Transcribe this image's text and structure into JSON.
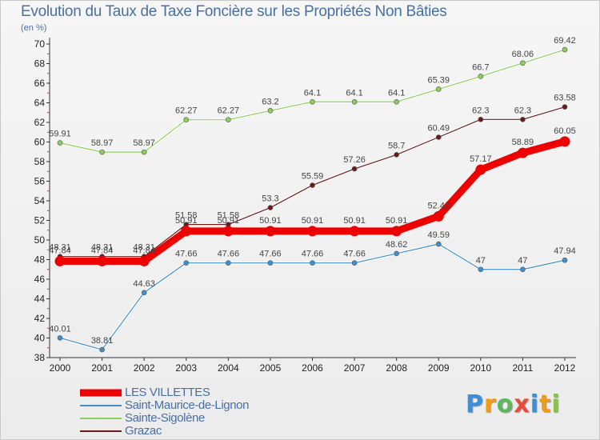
{
  "title": "Evolution du Taux de Taxe Foncière sur les Propriétés Non Bâties",
  "subtitle": "(en %)",
  "logo": {
    "text": "Proxiti",
    "letter_colors": [
      "#3a8fd6",
      "#f39c12",
      "#5cb85c",
      "#e74c3c",
      "#3a8fd6",
      "#f39c12",
      "#8bc34a"
    ]
  },
  "chart_data": {
    "type": "line",
    "title": "Evolution du Taux de Taxe Foncière sur les Propriétés Non Bâties",
    "ylabel": "(en %)",
    "x": [
      "2000",
      "2001",
      "2002",
      "2003",
      "2004",
      "2005",
      "2006",
      "2007",
      "2008",
      "2009",
      "2010",
      "2011",
      "2012"
    ],
    "ylim": [
      38,
      70
    ],
    "yticks": [
      38,
      40,
      42,
      44,
      46,
      48,
      50,
      52,
      54,
      56,
      58,
      60,
      62,
      64,
      66,
      68,
      70
    ],
    "series": [
      {
        "name": "Saint-Maurice-de-Lignon",
        "color": "#3f8fce",
        "values": [
          40.01,
          38.81,
          44.63,
          47.66,
          47.66,
          47.66,
          47.66,
          47.66,
          48.62,
          49.59,
          47,
          47,
          47.94
        ],
        "labels": [
          "40.01",
          "38.81",
          "44.63",
          "47.66",
          "47.66",
          "47.66",
          "47.66",
          "47.66",
          "48.62",
          "49.59",
          "47",
          "47",
          "47.94"
        ]
      },
      {
        "name": "Sainte-Sigolène",
        "color": "#8ccf5a",
        "values": [
          59.91,
          58.97,
          58.97,
          62.27,
          62.27,
          63.2,
          64.1,
          64.1,
          64.1,
          65.39,
          66.7,
          68.06,
          69.42
        ],
        "labels": [
          "59.91",
          "58.97",
          "58.97",
          "62.27",
          "62.27",
          "63.2",
          "64.1",
          "64.1",
          "64.1",
          "65.39",
          "66.7",
          "68.06",
          "69.42"
        ]
      },
      {
        "name": "Grazac",
        "color": "#6b1a1a",
        "values": [
          48.31,
          48.31,
          48.31,
          51.58,
          51.58,
          53.3,
          55.59,
          57.26,
          58.7,
          60.49,
          62.3,
          62.3,
          63.58
        ],
        "labels": [
          "48.31",
          "48.31",
          "48.31",
          "51.58",
          "51.58",
          "53.3",
          "55.59",
          "57.26",
          "58.7",
          "60.49",
          "62.3",
          "62.3",
          "63.58"
        ]
      },
      {
        "name": "LES VILLETTES",
        "color": "#ee0000",
        "bold": true,
        "values": [
          47.84,
          47.84,
          47.84,
          50.91,
          50.91,
          50.91,
          50.91,
          50.91,
          50.91,
          52.42,
          57.17,
          58.89,
          60.05
        ],
        "labels": [
          "47.84",
          "47.84",
          "47.84",
          "50.91",
          "50.91",
          "50.91",
          "50.91",
          "50.91",
          "50.91",
          "52.42",
          "57.17",
          "58.89",
          "60.05"
        ]
      }
    ],
    "legend_order": [
      "LES VILLETTES",
      "Saint-Maurice-de-Lignon",
      "Sainte-Sigolène",
      "Grazac"
    ],
    "legend_position": "bottom-left",
    "grid": false
  }
}
